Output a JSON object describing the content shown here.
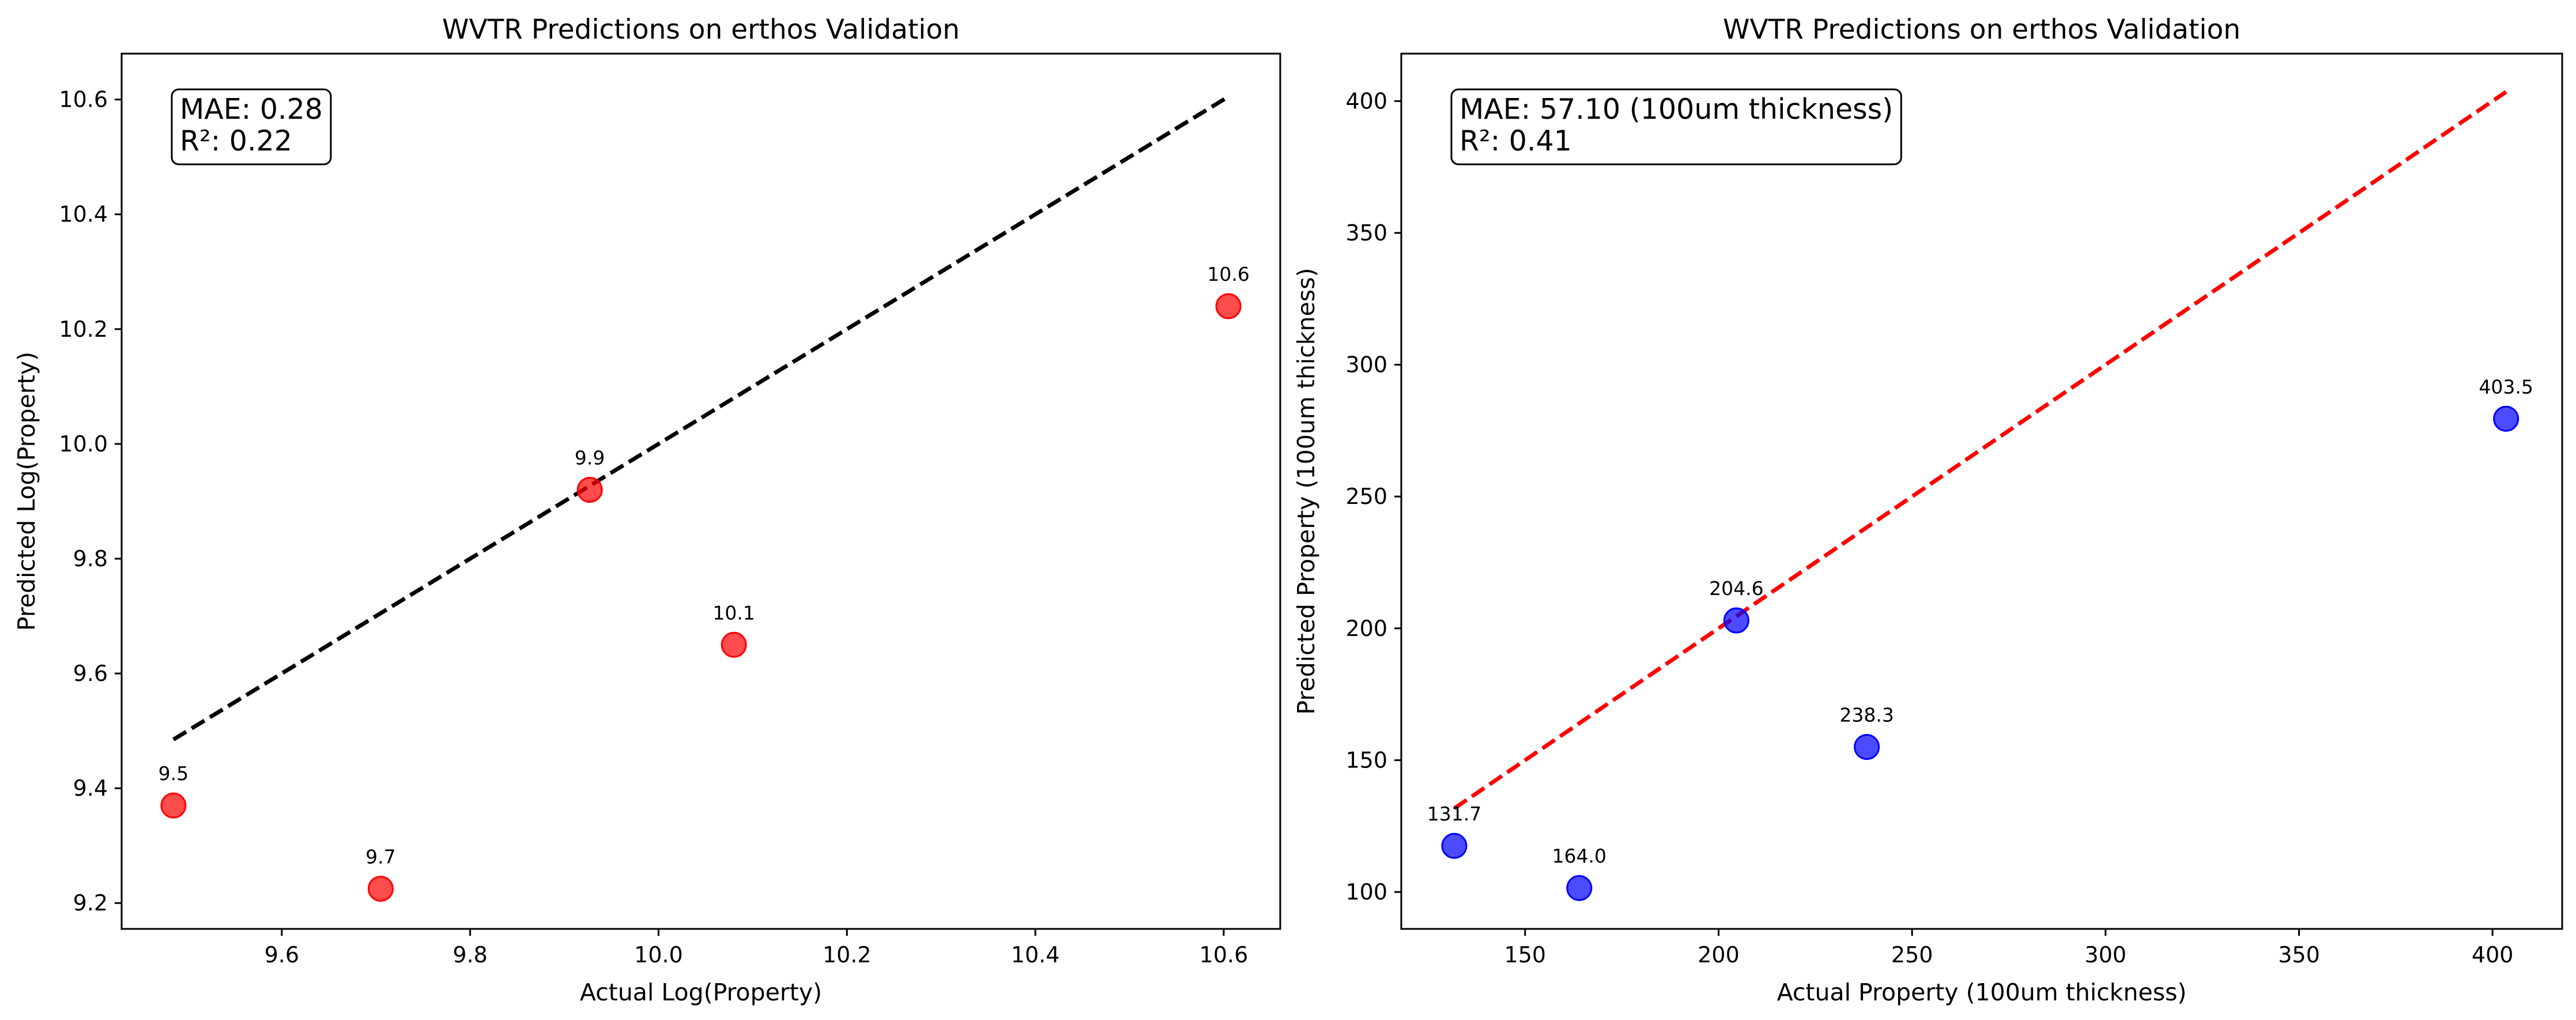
{
  "chart_data": [
    {
      "type": "scatter",
      "title": "WVTR Predictions on erthos Validation",
      "xlabel": "Actual Log(Property)",
      "ylabel": "Predicted Log(Property)",
      "xlim": [
        9.43,
        10.66
      ],
      "ylim": [
        9.155,
        10.68
      ],
      "xticks": [
        9.6,
        9.8,
        10.0,
        10.2,
        10.4,
        10.6
      ],
      "yticks": [
        9.2,
        9.4,
        9.6,
        9.8,
        10.0,
        10.2,
        10.4,
        10.6
      ],
      "tick_decimals": 1,
      "grid": false,
      "point_color": "#ff0000",
      "line_color": "#000000",
      "stats": [
        "MAE: 0.28",
        "R²: 0.22"
      ],
      "points": [
        {
          "x": 9.485,
          "y": 9.37,
          "label": "9.5"
        },
        {
          "x": 9.705,
          "y": 9.225,
          "label": "9.7"
        },
        {
          "x": 9.927,
          "y": 9.92,
          "label": "9.9"
        },
        {
          "x": 10.08,
          "y": 9.65,
          "label": "10.1"
        },
        {
          "x": 10.605,
          "y": 10.24,
          "label": "10.6"
        }
      ],
      "identity_line": {
        "from": 9.485,
        "to": 10.605
      }
    },
    {
      "type": "scatter",
      "title": "WVTR Predictions on erthos Validation",
      "xlabel": "Actual Property (100um thickness)",
      "ylabel": "Predicted Property (100um thickness)",
      "xlim": [
        118,
        418
      ],
      "ylim": [
        86,
        418
      ],
      "xticks": [
        150,
        200,
        250,
        300,
        350,
        400
      ],
      "yticks": [
        100,
        150,
        200,
        250,
        300,
        350,
        400
      ],
      "tick_decimals": 0,
      "grid": false,
      "point_color": "#0000ff",
      "line_color": "#ff0000",
      "stats": [
        "MAE: 57.10 (100um thickness)",
        "R²: 0.41"
      ],
      "points": [
        {
          "x": 131.7,
          "y": 117.5,
          "label": "131.7"
        },
        {
          "x": 164.0,
          "y": 101.5,
          "label": "164.0"
        },
        {
          "x": 204.6,
          "y": 203.0,
          "label": "204.6"
        },
        {
          "x": 238.3,
          "y": 155.0,
          "label": "238.3"
        },
        {
          "x": 403.5,
          "y": 279.5,
          "label": "403.5"
        }
      ],
      "identity_line": {
        "from": 131.7,
        "to": 403.5
      }
    }
  ]
}
